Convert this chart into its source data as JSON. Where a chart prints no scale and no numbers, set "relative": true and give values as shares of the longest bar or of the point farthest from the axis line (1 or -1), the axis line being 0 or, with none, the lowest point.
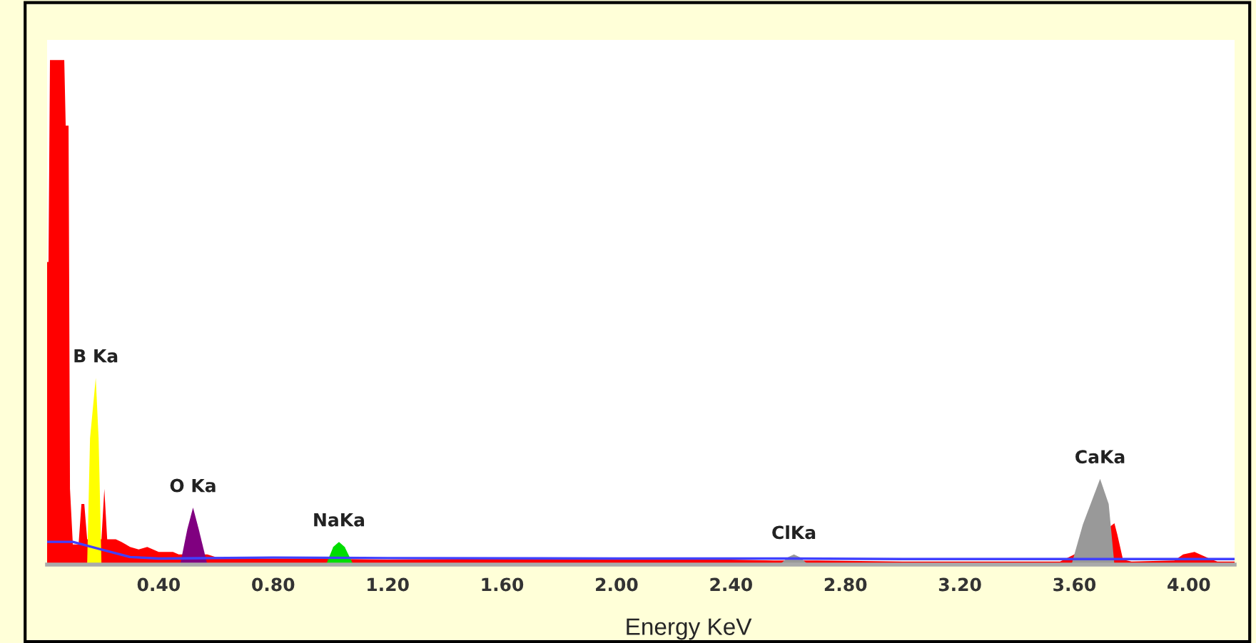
{
  "chart_data": {
    "type": "area",
    "relative": true,
    "xlabel": "Energy KeV",
    "xlim": [
      0.01,
      4.16
    ],
    "xticks": [
      {
        "value": 0.4,
        "label": "0.40"
      },
      {
        "value": 0.8,
        "label": "0.80"
      },
      {
        "value": 1.2,
        "label": "1.20"
      },
      {
        "value": 1.6,
        "label": "1.60"
      },
      {
        "value": 2.0,
        "label": "2.00"
      },
      {
        "value": 2.4,
        "label": "2.40"
      },
      {
        "value": 2.8,
        "label": "2.80"
      },
      {
        "value": 3.2,
        "label": "3.20"
      },
      {
        "value": 3.6,
        "label": "3.60"
      },
      {
        "value": 4.0,
        "label": "4.00"
      }
    ],
    "grid": false,
    "series": [
      {
        "color": "#ff0000",
        "x": [
          0.01,
          0.015,
          0.02,
          0.07,
          0.075,
          0.085,
          0.09,
          0.1,
          0.12,
          0.13,
          0.14,
          0.15,
          0.2,
          0.21,
          0.22,
          0.25,
          0.27,
          0.3,
          0.33,
          0.36,
          0.4,
          0.45,
          0.47,
          0.57,
          0.6,
          0.7,
          0.9,
          1.2,
          1.6,
          2.0,
          2.4,
          2.55,
          2.7,
          3.0,
          3.4,
          3.55,
          3.6,
          3.74,
          3.75,
          3.77,
          3.8,
          3.95,
          3.98,
          4.02,
          4.08,
          4.1,
          4.16
        ],
        "values": [
          0.6,
          0.6,
          1.0,
          1.0,
          0.87,
          0.87,
          0.15,
          0.04,
          0.04,
          0.12,
          0.12,
          0.05,
          0.05,
          0.15,
          0.05,
          0.05,
          0.045,
          0.035,
          0.03,
          0.035,
          0.025,
          0.025,
          0.02,
          0.02,
          0.015,
          0.012,
          0.012,
          0.01,
          0.012,
          0.01,
          0.01,
          0.008,
          0.008,
          0.006,
          0.006,
          0.006,
          0.02,
          0.082,
          0.06,
          0.01,
          0.006,
          0.008,
          0.02,
          0.025,
          0.01,
          0.006,
          0.006
        ]
      },
      {
        "color": "#ffff00",
        "x": [
          0.15,
          0.16,
          0.18,
          0.19,
          0.2
        ],
        "values": [
          0.0,
          0.25,
          0.37,
          0.25,
          0.0
        ]
      },
      {
        "color": "#800080",
        "x": [
          0.475,
          0.5,
          0.52,
          0.54,
          0.57
        ],
        "values": [
          0.0,
          0.07,
          0.113,
          0.07,
          0.0
        ]
      },
      {
        "color": "#00dd00",
        "x": [
          0.985,
          1.01,
          1.03,
          1.05,
          1.08
        ],
        "values": [
          0.0,
          0.035,
          0.045,
          0.035,
          0.0
        ]
      },
      {
        "color": "#999999",
        "x": [
          2.57,
          2.6,
          2.62,
          2.64,
          2.67
        ],
        "values": [
          0.0,
          0.015,
          0.02,
          0.015,
          0.0
        ]
      },
      {
        "color": "#999999",
        "x": [
          3.59,
          3.63,
          3.69,
          3.72,
          3.74
        ],
        "values": [
          0.0,
          0.08,
          0.17,
          0.12,
          0.0
        ]
      },
      {
        "type": "line",
        "color": "#4040ff",
        "x": [
          0.01,
          0.1,
          0.2,
          0.3,
          0.4,
          0.8,
          1.2,
          2.0,
          2.6,
          3.0,
          3.6,
          4.0,
          4.16
        ],
        "values": [
          0.045,
          0.045,
          0.03,
          0.015,
          0.012,
          0.014,
          0.013,
          0.012,
          0.012,
          0.011,
          0.011,
          0.011,
          0.011
        ]
      }
    ],
    "annotations": [
      {
        "text": "B Ka",
        "x": 0.18,
        "y": 0.37
      },
      {
        "text": "O Ka",
        "x": 0.52,
        "y": 0.113
      },
      {
        "text": "NaKa",
        "x": 1.03,
        "y": 0.045
      },
      {
        "text": "ClKa",
        "x": 2.62,
        "y": 0.02
      },
      {
        "text": "CaKa",
        "x": 3.69,
        "y": 0.17
      }
    ]
  }
}
